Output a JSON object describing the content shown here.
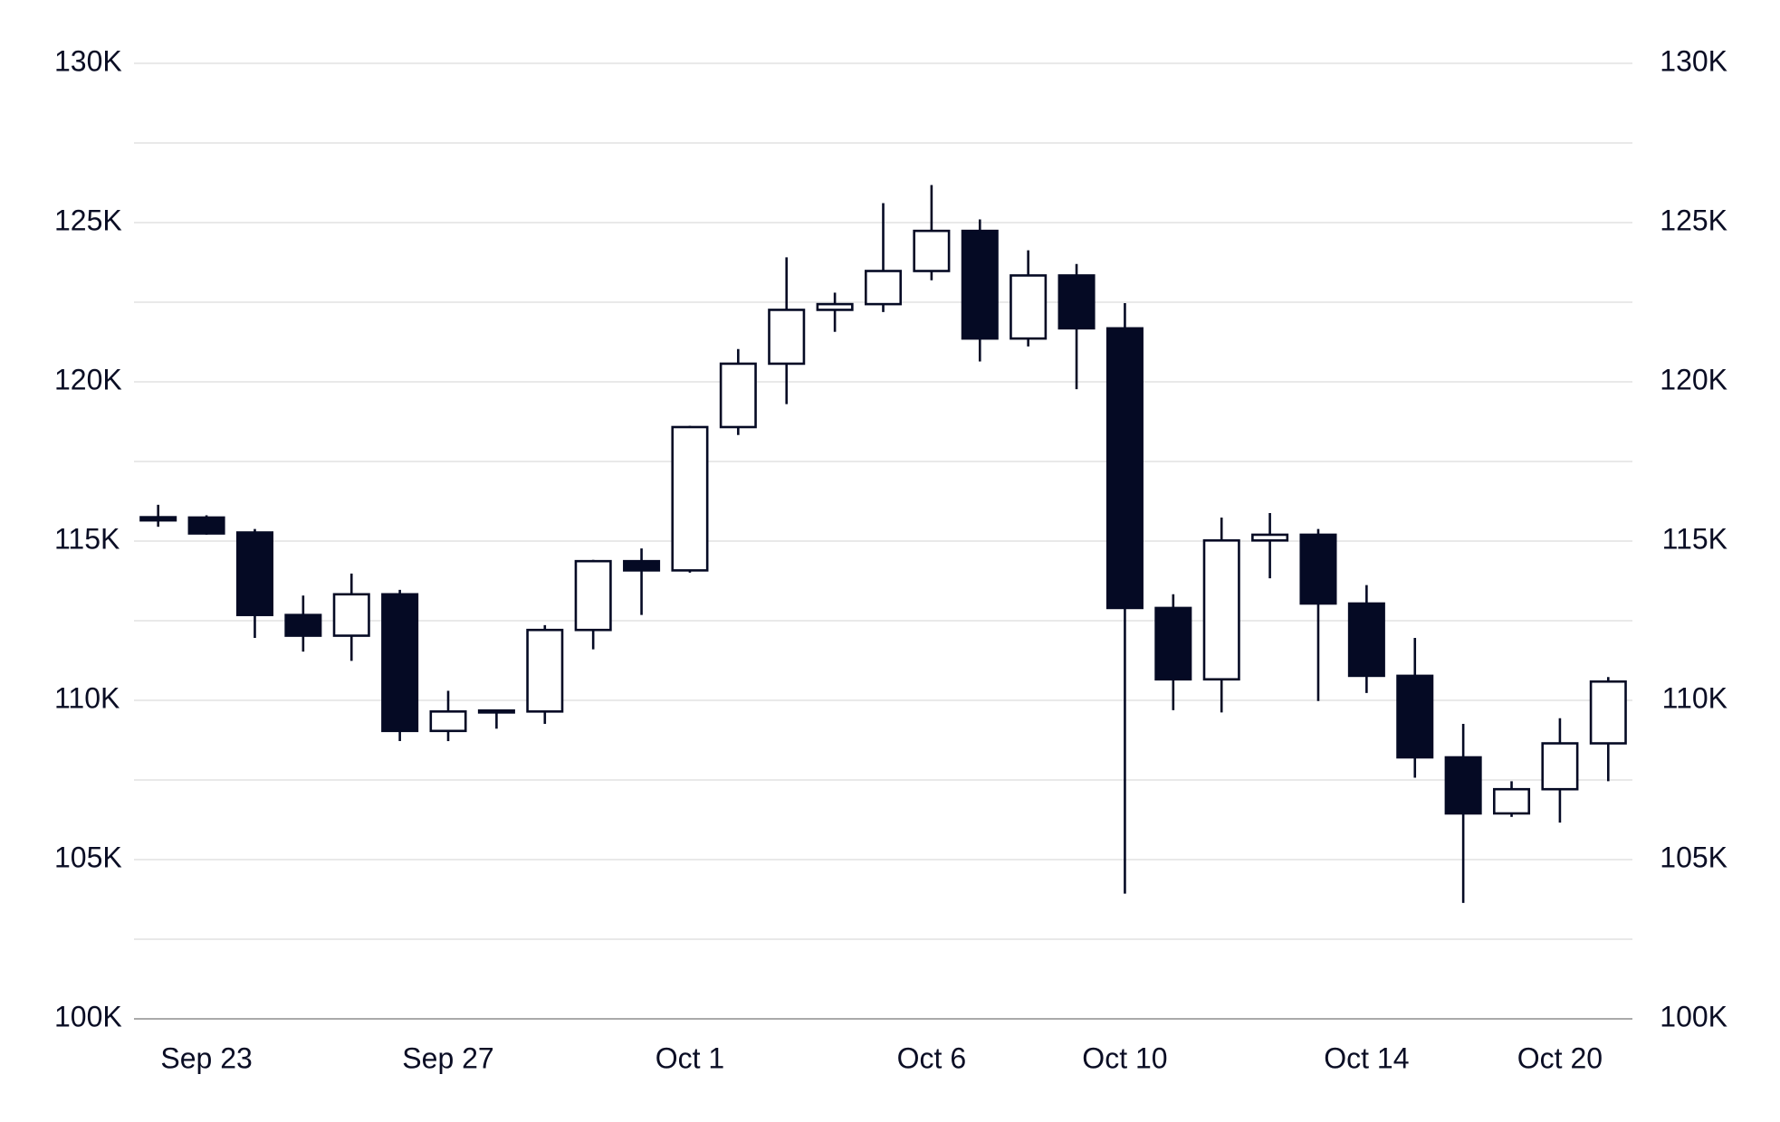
{
  "chart_data": {
    "type": "candlestick",
    "categories": [
      null,
      "Sep 23",
      null,
      null,
      null,
      null,
      "Sep 27",
      null,
      null,
      null,
      null,
      "Oct 1",
      null,
      null,
      null,
      null,
      "Oct 6",
      null,
      null,
      null,
      "Oct 10",
      null,
      null,
      null,
      null,
      "Oct 14",
      null,
      null,
      null,
      "Oct 20",
      null
    ],
    "open": [
      115750,
      115740,
      115270,
      112680,
      112030,
      113330,
      109040,
      109620,
      109650,
      112210,
      114370,
      114080,
      118580,
      120570,
      122260,
      122440,
      123480,
      124740,
      121360,
      123340,
      121680,
      112900,
      110660,
      115020,
      115200,
      113040,
      110770,
      108210,
      106450,
      107210,
      108650
    ],
    "high": [
      116140,
      115810,
      115380,
      113290,
      113980,
      113470,
      110300,
      109700,
      112360,
      114410,
      114770,
      118620,
      121030,
      123910,
      122800,
      125610,
      126180,
      125100,
      124130,
      123700,
      122470,
      113330,
      115740,
      115880,
      115380,
      113620,
      111960,
      109260,
      107460,
      109440,
      110730
    ],
    "low": [
      115450,
      115200,
      111960,
      111530,
      111240,
      108720,
      108720,
      109110,
      109260,
      111600,
      112680,
      114010,
      118330,
      119300,
      121570,
      122190,
      123190,
      120640,
      121110,
      119770,
      103930,
      109690,
      109620,
      113830,
      109980,
      110230,
      107570,
      103640,
      106340,
      106160,
      107460
    ],
    "close": [
      115650,
      115240,
      112680,
      112030,
      113330,
      109040,
      109650,
      109680,
      112210,
      114370,
      114080,
      118580,
      120570,
      122260,
      122440,
      123480,
      124740,
      121360,
      123340,
      121680,
      112900,
      110660,
      115020,
      115200,
      113040,
      110770,
      108210,
      106450,
      107210,
      108650,
      110590
    ],
    "up_color": "#ffffff",
    "down_color": "#050a24",
    "ylim": [
      100000,
      130000
    ],
    "yticks": [
      {
        "value": 100000,
        "label": "100K"
      },
      {
        "value": 105000,
        "label": "105K"
      },
      {
        "value": 110000,
        "label": "110K"
      },
      {
        "value": 115000,
        "label": "115K"
      },
      {
        "value": 120000,
        "label": "120K"
      },
      {
        "value": 125000,
        "label": "125K"
      },
      {
        "value": 130000,
        "label": "130K"
      }
    ],
    "minor_yticks": [
      102500,
      107500,
      112500,
      117500,
      122500,
      127500
    ],
    "y2lim": [
      100000,
      130000
    ],
    "y2ticks": [
      {
        "value": 100000,
        "label": "100K"
      },
      {
        "value": 105000,
        "label": "105K"
      },
      {
        "value": 110000,
        "label": "110K"
      },
      {
        "value": 115000,
        "label": "115K"
      },
      {
        "value": 120000,
        "label": "120K"
      },
      {
        "value": 125000,
        "label": "125K"
      },
      {
        "value": 130000,
        "label": "130K"
      }
    ],
    "grid": true
  }
}
